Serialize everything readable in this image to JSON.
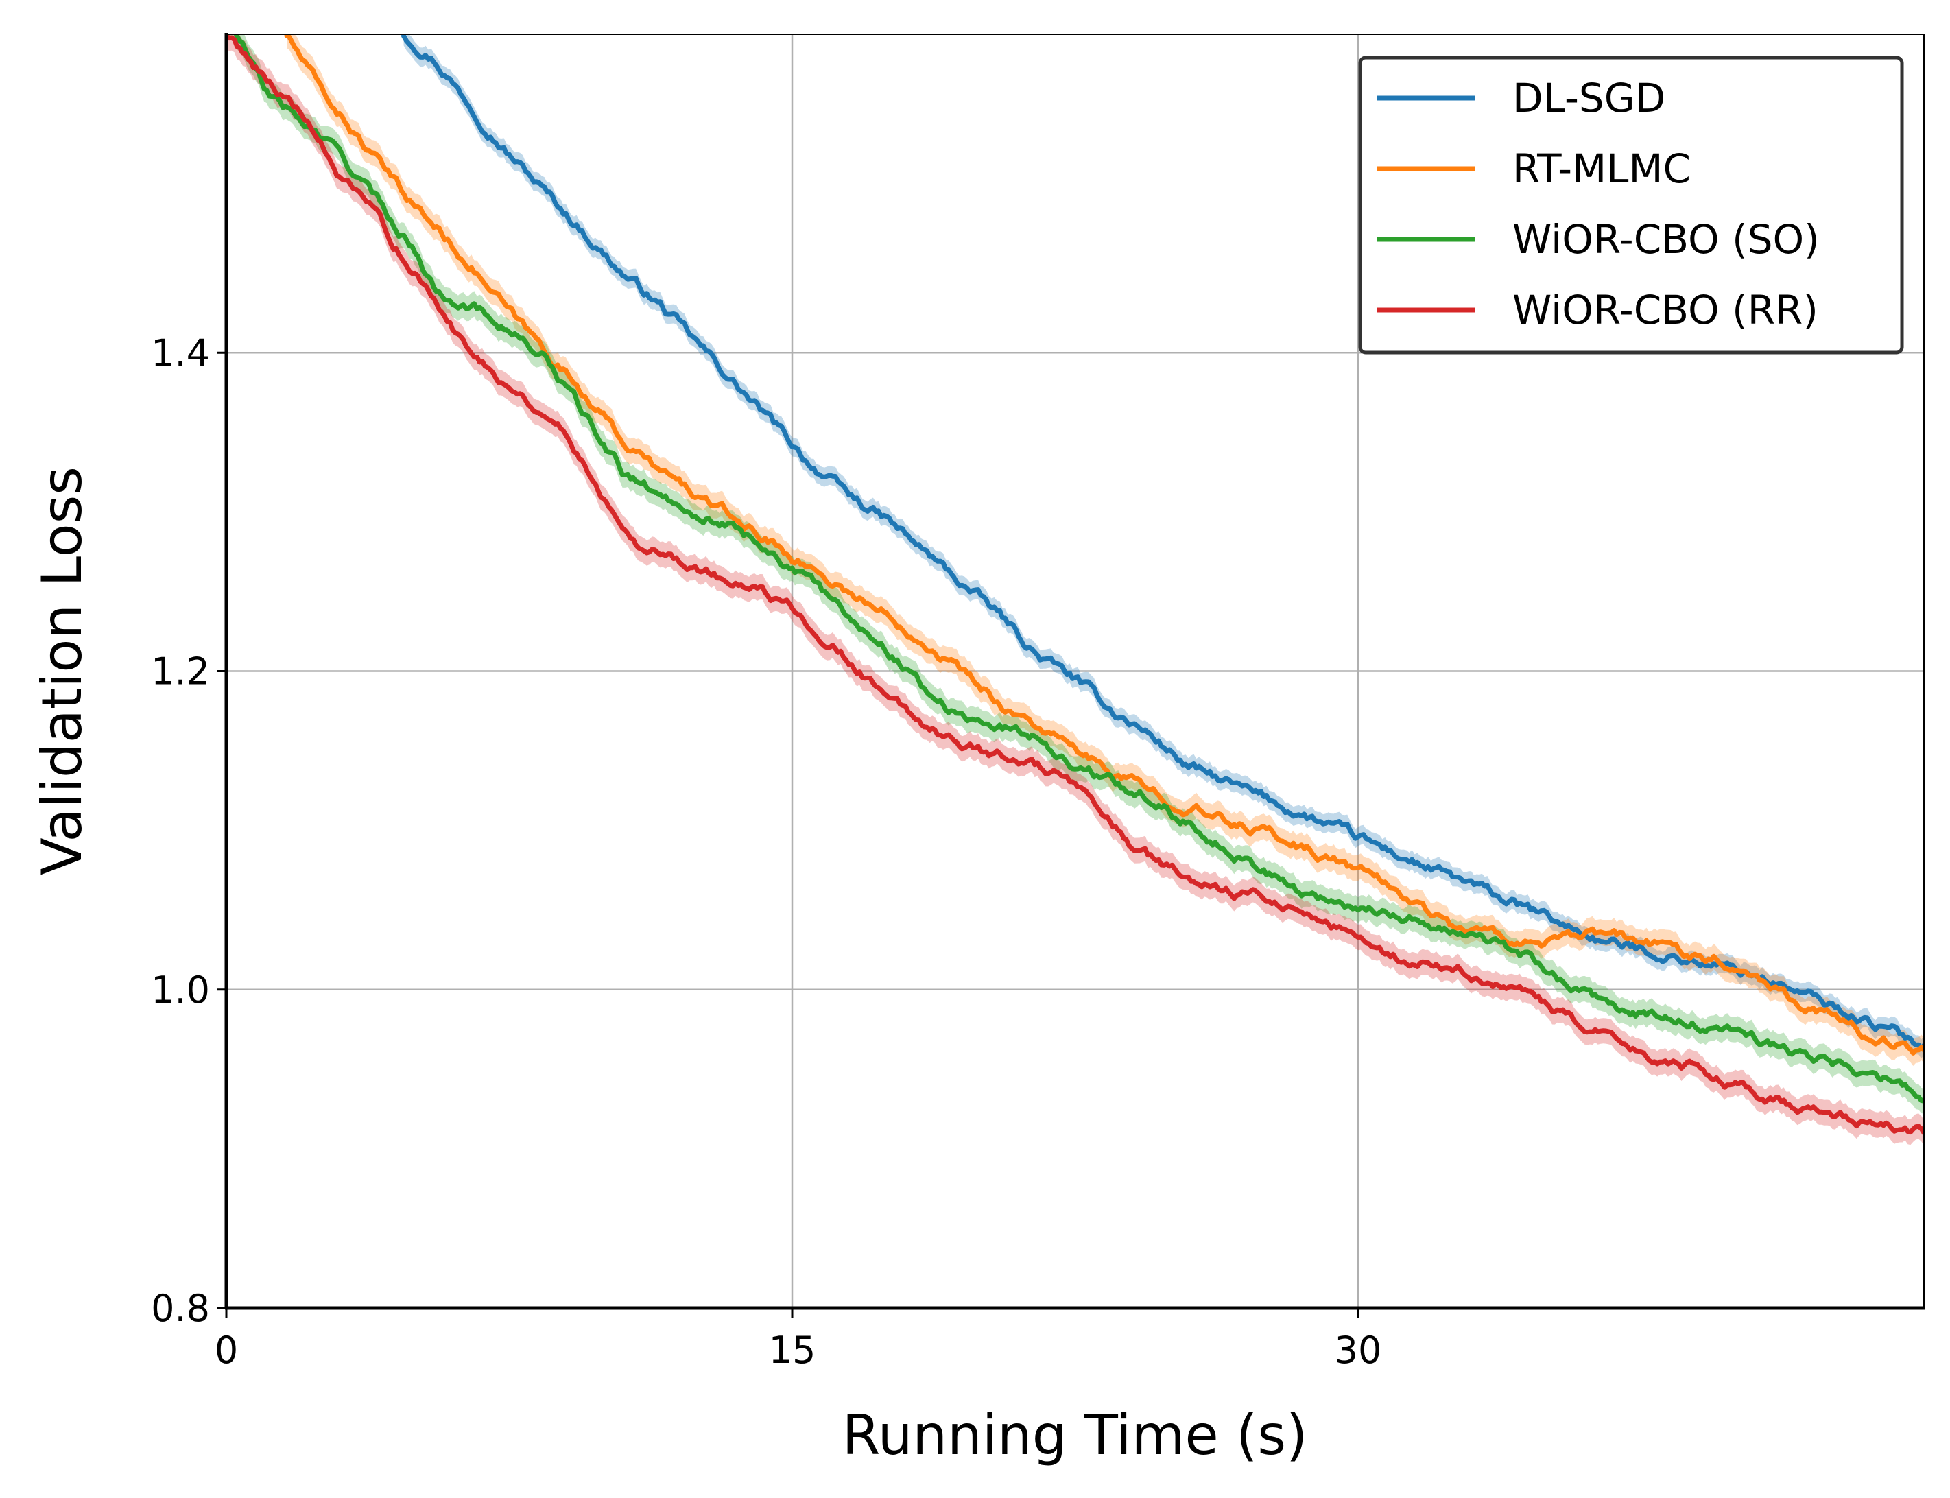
{
  "chart_data": {
    "type": "line",
    "title": "",
    "xlabel": "Running Time (s)",
    "ylabel": "Validation Loss",
    "xlim": [
      0,
      45
    ],
    "ylim": [
      0.8,
      1.6
    ],
    "xticks": [
      0,
      15,
      30
    ],
    "xtick_labels": [
      "0",
      "15",
      "30"
    ],
    "yticks": [
      0.8,
      1.0,
      1.2,
      1.4
    ],
    "ytick_labels": [
      "0.8",
      "1.0",
      "1.2",
      "1.4"
    ],
    "grid": true,
    "legend_position": "top-right",
    "series": [
      {
        "name": "DL-SGD",
        "color": "#1f77b4",
        "band": 0.006,
        "points": [
          [
            4.7,
            1.6
          ],
          [
            5.5,
            1.585
          ],
          [
            6.5,
            1.555
          ],
          [
            7.5,
            1.525
          ],
          [
            8.5,
            1.5
          ],
          [
            9.5,
            1.475
          ],
          [
            10.5,
            1.45
          ],
          [
            11.5,
            1.43
          ],
          [
            12.5,
            1.405
          ],
          [
            13.5,
            1.38
          ],
          [
            14.5,
            1.355
          ],
          [
            15.5,
            1.33
          ],
          [
            16.5,
            1.31
          ],
          [
            17.5,
            1.295
          ],
          [
            18.5,
            1.275
          ],
          [
            19.5,
            1.255
          ],
          [
            20.5,
            1.235
          ],
          [
            21.5,
            1.21
          ],
          [
            22.5,
            1.195
          ],
          [
            23.5,
            1.175
          ],
          [
            24.5,
            1.16
          ],
          [
            25.5,
            1.14
          ],
          [
            26.5,
            1.13
          ],
          [
            27.5,
            1.12
          ],
          [
            28.5,
            1.11
          ],
          [
            29.5,
            1.1
          ],
          [
            30.5,
            1.09
          ],
          [
            31.5,
            1.08
          ],
          [
            32.5,
            1.07
          ],
          [
            33.5,
            1.06
          ],
          [
            34.5,
            1.05
          ],
          [
            35.5,
            1.04
          ],
          [
            36.5,
            1.03
          ],
          [
            37.5,
            1.025
          ],
          [
            38.5,
            1.02
          ],
          [
            39.5,
            1.015
          ],
          [
            40.5,
            1.01
          ],
          [
            41.5,
            1.0
          ],
          [
            42.5,
            0.99
          ],
          [
            43.5,
            0.98
          ],
          [
            44.5,
            0.97
          ],
          [
            45,
            0.965
          ]
        ]
      },
      {
        "name": "RT-MLMC",
        "color": "#ff7f0e",
        "band": 0.008,
        "points": [
          [
            1.6,
            1.6
          ],
          [
            2.5,
            1.565
          ],
          [
            3.5,
            1.535
          ],
          [
            4.5,
            1.505
          ],
          [
            5.5,
            1.48
          ],
          [
            6.5,
            1.455
          ],
          [
            7.5,
            1.425
          ],
          [
            8.5,
            1.4
          ],
          [
            9.5,
            1.375
          ],
          [
            10.5,
            1.345
          ],
          [
            11.5,
            1.325
          ],
          [
            12.5,
            1.31
          ],
          [
            13.5,
            1.295
          ],
          [
            14.5,
            1.28
          ],
          [
            15.5,
            1.265
          ],
          [
            16.5,
            1.25
          ],
          [
            17.5,
            1.235
          ],
          [
            18.5,
            1.22
          ],
          [
            19.5,
            1.2
          ],
          [
            20.5,
            1.18
          ],
          [
            21.5,
            1.165
          ],
          [
            22.5,
            1.15
          ],
          [
            23.5,
            1.135
          ],
          [
            24.5,
            1.125
          ],
          [
            25.5,
            1.115
          ],
          [
            26.5,
            1.105
          ],
          [
            27.5,
            1.1
          ],
          [
            28.5,
            1.09
          ],
          [
            29.5,
            1.08
          ],
          [
            30.5,
            1.07
          ],
          [
            31.5,
            1.055
          ],
          [
            32.5,
            1.04
          ],
          [
            33.5,
            1.035
          ],
          [
            34.5,
            1.03
          ],
          [
            35.5,
            1.03
          ],
          [
            36.5,
            1.035
          ],
          [
            37.5,
            1.03
          ],
          [
            38.5,
            1.025
          ],
          [
            39.5,
            1.02
          ],
          [
            40.5,
            1.01
          ],
          [
            41.5,
            0.995
          ],
          [
            42.5,
            0.985
          ],
          [
            43.5,
            0.97
          ],
          [
            44.5,
            0.965
          ],
          [
            45,
            0.962
          ]
        ]
      },
      {
        "name": "WiOR-CBO (SO)",
        "color": "#2ca02c",
        "band": 0.008,
        "points": [
          [
            0,
            1.61
          ],
          [
            0.5,
            1.59
          ],
          [
            1,
            1.565
          ],
          [
            2,
            1.545
          ],
          [
            3,
            1.525
          ],
          [
            4,
            1.495
          ],
          [
            5,
            1.465
          ],
          [
            5.5,
            1.44
          ],
          [
            6.5,
            1.43
          ],
          [
            7.5,
            1.415
          ],
          [
            8.5,
            1.395
          ],
          [
            9.5,
            1.36
          ],
          [
            10.5,
            1.325
          ],
          [
            11.5,
            1.31
          ],
          [
            12.5,
            1.3
          ],
          [
            13.5,
            1.29
          ],
          [
            14.5,
            1.275
          ],
          [
            15.5,
            1.255
          ],
          [
            16.5,
            1.235
          ],
          [
            17.5,
            1.215
          ],
          [
            18.5,
            1.19
          ],
          [
            19.5,
            1.17
          ],
          [
            20.5,
            1.165
          ],
          [
            21.5,
            1.16
          ],
          [
            22.5,
            1.14
          ],
          [
            23.5,
            1.13
          ],
          [
            24.5,
            1.12
          ],
          [
            25.5,
            1.105
          ],
          [
            26.5,
            1.09
          ],
          [
            27.5,
            1.075
          ],
          [
            28.5,
            1.06
          ],
          [
            29.5,
            1.055
          ],
          [
            30.5,
            1.05
          ],
          [
            31.5,
            1.045
          ],
          [
            32.5,
            1.035
          ],
          [
            33.5,
            1.03
          ],
          [
            34.5,
            1.02
          ],
          [
            35.5,
            1.005
          ],
          [
            36.5,
            0.99
          ],
          [
            37.5,
            0.985
          ],
          [
            38.5,
            0.98
          ],
          [
            39.5,
            0.975
          ],
          [
            40.5,
            0.97
          ],
          [
            41.5,
            0.96
          ],
          [
            42.5,
            0.955
          ],
          [
            43.5,
            0.945
          ],
          [
            44.5,
            0.94
          ],
          [
            45,
            0.93
          ]
        ]
      },
      {
        "name": "WiOR-CBO (RR)",
        "color": "#d62728",
        "band": 0.008,
        "points": [
          [
            0,
            1.6
          ],
          [
            1,
            1.575
          ],
          [
            2,
            1.55
          ],
          [
            3,
            1.51
          ],
          [
            4,
            1.485
          ],
          [
            5,
            1.45
          ],
          [
            6,
            1.415
          ],
          [
            7,
            1.39
          ],
          [
            8,
            1.37
          ],
          [
            9,
            1.35
          ],
          [
            10,
            1.31
          ],
          [
            11,
            1.28
          ],
          [
            12,
            1.27
          ],
          [
            13,
            1.26
          ],
          [
            14,
            1.25
          ],
          [
            15,
            1.24
          ],
          [
            16,
            1.22
          ],
          [
            17,
            1.195
          ],
          [
            18,
            1.175
          ],
          [
            19,
            1.16
          ],
          [
            20,
            1.15
          ],
          [
            21,
            1.145
          ],
          [
            22,
            1.135
          ],
          [
            23,
            1.115
          ],
          [
            24,
            1.09
          ],
          [
            25,
            1.075
          ],
          [
            26,
            1.065
          ],
          [
            27,
            1.06
          ],
          [
            28,
            1.055
          ],
          [
            29,
            1.045
          ],
          [
            30,
            1.03
          ],
          [
            31,
            1.02
          ],
          [
            32,
            1.015
          ],
          [
            33,
            1.01
          ],
          [
            34,
            1.0
          ],
          [
            35,
            0.99
          ],
          [
            36,
            0.975
          ],
          [
            37,
            0.965
          ],
          [
            38,
            0.955
          ],
          [
            39,
            0.95
          ],
          [
            40,
            0.94
          ],
          [
            41,
            0.93
          ],
          [
            42,
            0.925
          ],
          [
            43,
            0.92
          ],
          [
            44,
            0.915
          ],
          [
            45,
            0.91
          ]
        ]
      }
    ]
  }
}
